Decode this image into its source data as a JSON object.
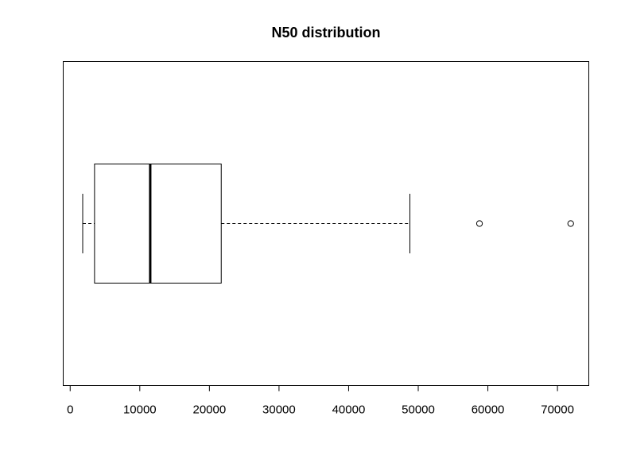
{
  "chart_data": {
    "type": "boxplot",
    "orientation": "horizontal",
    "title": "N50 distribution",
    "xlabel": "",
    "ylabel": "",
    "xlim": [
      -1000,
      74500
    ],
    "x_ticks": [
      0,
      10000,
      20000,
      30000,
      40000,
      50000,
      60000,
      70000
    ],
    "x_tick_labels": [
      "0",
      "10000",
      "20000",
      "30000",
      "40000",
      "50000",
      "60000",
      "70000"
    ],
    "boxes": [
      {
        "whisker_low": 1800,
        "q1": 3500,
        "median": 11500,
        "q3": 21700,
        "whisker_high": 48800,
        "outliers": [
          58800,
          71900
        ]
      }
    ],
    "grid": false,
    "legend": "none",
    "colors": {
      "stroke": "#000000",
      "background": "#ffffff"
    }
  }
}
